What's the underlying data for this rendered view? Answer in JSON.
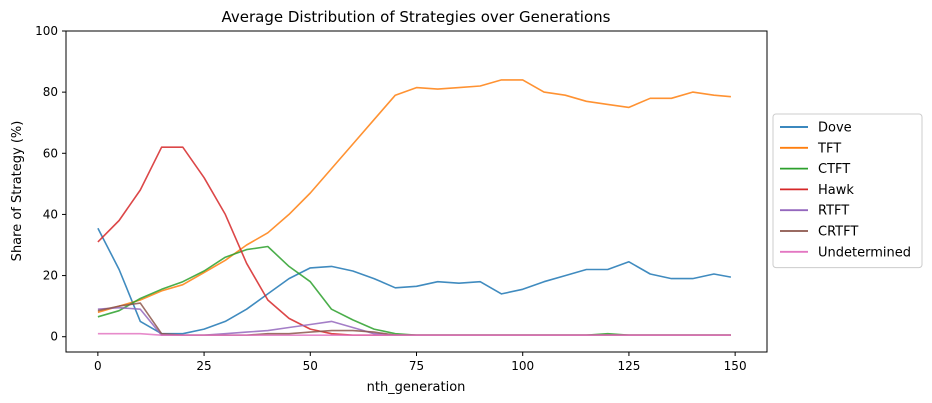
{
  "chart_data": {
    "type": "line",
    "title": "Average Distribution of Strategies over Generations",
    "xlabel": "nth_generation",
    "ylabel": "Share of Strategy (%)",
    "xlim": [
      -7.5,
      157.5
    ],
    "ylim": [
      -5,
      100
    ],
    "xticks": [
      0,
      25,
      50,
      75,
      100,
      125,
      150
    ],
    "yticks": [
      0,
      20,
      40,
      60,
      80,
      100
    ],
    "grid": false,
    "legend": "right, outside plot",
    "x": [
      0,
      5,
      10,
      15,
      20,
      25,
      30,
      35,
      40,
      45,
      50,
      55,
      60,
      65,
      70,
      75,
      80,
      85,
      90,
      95,
      100,
      105,
      110,
      115,
      120,
      125,
      130,
      135,
      140,
      145,
      149
    ],
    "series": [
      {
        "name": "Dove",
        "color": "#1f77b4",
        "values": [
          35.5,
          22,
          5,
          1,
          1,
          2.5,
          5,
          9,
          14,
          19,
          22.5,
          23,
          21.5,
          19,
          16,
          16.5,
          18,
          17.5,
          18,
          14,
          15.5,
          18,
          20,
          22,
          22,
          24.5,
          20.5,
          19,
          19,
          20.5,
          19.5
        ]
      },
      {
        "name": "TFT",
        "color": "#ff7f0e",
        "values": [
          8,
          10,
          12,
          15,
          17,
          21,
          25,
          30,
          34,
          40,
          47,
          55,
          63,
          71,
          79,
          81.5,
          81,
          81.5,
          82,
          84,
          84,
          80,
          79,
          77,
          76,
          75,
          78,
          78,
          80,
          79,
          78.5
        ]
      },
      {
        "name": "CTFT",
        "color": "#2ca02c",
        "values": [
          6.5,
          8.5,
          12.5,
          15.5,
          18,
          21.5,
          26,
          28.5,
          29.5,
          23,
          18,
          9,
          5.5,
          2.5,
          1,
          0.5,
          0.5,
          0.5,
          0.5,
          0.5,
          0.5,
          0.5,
          0.5,
          0.5,
          1,
          0.5,
          0.5,
          0.5,
          0.5,
          0.5,
          0.5
        ]
      },
      {
        "name": "Hawk",
        "color": "#d62728",
        "values": [
          31,
          38,
          48,
          62,
          62,
          52,
          40,
          24,
          12,
          6,
          2.5,
          1,
          0.5,
          0.5,
          0.5,
          0.5,
          0.5,
          0.5,
          0.5,
          0.5,
          0.5,
          0.5,
          0.5,
          0.5,
          0.5,
          0.5,
          0.5,
          0.5,
          0.5,
          0.5,
          0.5
        ]
      },
      {
        "name": "RTFT",
        "color": "#9467bd",
        "values": [
          9,
          9.5,
          9,
          0.5,
          0.5,
          0.5,
          1,
          1.5,
          2,
          3,
          4,
          5,
          3,
          1,
          0.5,
          0.5,
          0.5,
          0.5,
          0.5,
          0.5,
          0.5,
          0.5,
          0.5,
          0.5,
          0.5,
          0.5,
          0.5,
          0.5,
          0.5,
          0.5,
          0.5
        ]
      },
      {
        "name": "CRTFT",
        "color": "#8c564b",
        "values": [
          8.5,
          10,
          11,
          1,
          0.5,
          0.5,
          0.5,
          0.5,
          1,
          1,
          1.5,
          2,
          2,
          1.5,
          0.5,
          0.5,
          0.5,
          0.5,
          0.5,
          0.5,
          0.5,
          0.5,
          0.5,
          0.5,
          0.5,
          0.5,
          0.5,
          0.5,
          0.5,
          0.5,
          0.5
        ]
      },
      {
        "name": "Undetermined",
        "color": "#e377c2",
        "values": [
          1,
          1,
          1,
          0.5,
          0.5,
          0.5,
          0.5,
          0.5,
          0.5,
          0.5,
          0.5,
          0.5,
          0.5,
          0.5,
          0.5,
          0.5,
          0.5,
          0.5,
          0.5,
          0.5,
          0.5,
          0.5,
          0.5,
          0.5,
          0.5,
          0.5,
          0.5,
          0.5,
          0.5,
          0.5,
          0.5
        ]
      }
    ]
  }
}
